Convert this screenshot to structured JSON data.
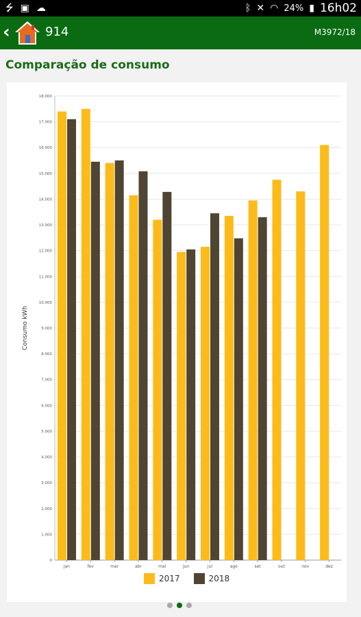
{
  "status_bar": {
    "battery": "24%",
    "time": "16h02",
    "icons": [
      "usb-icon",
      "image-icon",
      "cloud-icon",
      "bluetooth-icon",
      "mute-icon",
      "wifi-icon",
      "battery-icon"
    ]
  },
  "app_bar": {
    "title": "914",
    "subtitle": "M3972/18"
  },
  "page": {
    "title": "Comparação de consumo"
  },
  "colors": {
    "appbar": "#0a6b12",
    "series_2017": "#fdbb1a",
    "series_2018": "#4f4532"
  },
  "chart_data": {
    "type": "bar",
    "title": "",
    "xlabel": "",
    "ylabel": "Consumo kWh",
    "ylim": [
      0,
      18000
    ],
    "yticks": [
      "0",
      "1.000",
      "2.000",
      "3.000",
      "4.000",
      "5.000",
      "6.000",
      "7.000",
      "8.000",
      "9.000",
      "10.000",
      "11.000",
      "12.000",
      "13.000",
      "14.000",
      "15.000",
      "16.000",
      "17.000",
      "18.000"
    ],
    "categories": [
      "jan",
      "fev",
      "mar",
      "abr",
      "mai",
      "jun",
      "jul",
      "ago",
      "set",
      "out",
      "nov",
      "dez"
    ],
    "series": [
      {
        "name": "2017",
        "values": [
          17400,
          17500,
          15400,
          14150,
          13200,
          11950,
          12150,
          13350,
          13950,
          14750,
          14300,
          16100
        ]
      },
      {
        "name": "2018",
        "values": [
          17100,
          15450,
          15500,
          15080,
          14280,
          12050,
          13450,
          12480,
          13300,
          null,
          null,
          null
        ]
      }
    ],
    "grid": true,
    "legend": "bottom-center"
  }
}
